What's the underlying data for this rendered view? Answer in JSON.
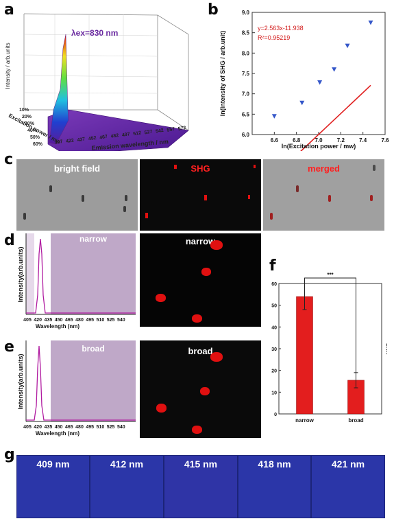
{
  "panel_labels": {
    "a": "a",
    "b": "b",
    "c": "c",
    "d": "d",
    "e": "e",
    "f": "f",
    "g": "g"
  },
  "panel_a": {
    "annotation": "λex=830 nm",
    "z_label": "Intensity / arb.units",
    "x_label": "Emission wavelength / nm",
    "y_label": "Excitation power / mw",
    "x_ticks": [
      "407",
      "422",
      "437",
      "452",
      "467",
      "482",
      "497",
      "512",
      "527",
      "542",
      "557",
      "572"
    ],
    "y_ticks": [
      "10%",
      "20%",
      "30%",
      "40%",
      "50%",
      "60%"
    ]
  },
  "panel_c": {
    "titles": [
      "bright field",
      "SHG",
      "merged"
    ]
  },
  "panel_d": {
    "band_label": "narrow",
    "image_label": "narrow",
    "ylabel": "Intensity(arb.units)",
    "xlabel": "Wavelength (nm)",
    "x_ticks": [
      "405",
      "420",
      "435",
      "450",
      "465",
      "480",
      "495",
      "510",
      "525",
      "540"
    ]
  },
  "panel_e": {
    "band_label": "broad",
    "image_label": "broad",
    "ylabel": "Intensity(arb.units)",
    "xlabel": "Wavelength (nm)",
    "x_ticks": [
      "405",
      "420",
      "435",
      "450",
      "465",
      "480",
      "495",
      "510",
      "525",
      "540"
    ]
  },
  "panel_g": {
    "tiles": [
      "409 nm",
      "412 nm",
      "415 nm",
      "418 nm",
      "421 nm"
    ]
  },
  "chart_data": [
    {
      "id": "b",
      "type": "scatter",
      "xlabel": "ln(Excitation power / mw)",
      "ylabel": "ln(Intensity of SHG / arb.unit)",
      "xlim": [
        6.4,
        7.6
      ],
      "ylim": [
        6.0,
        9.0
      ],
      "x_ticks": [
        6.6,
        6.8,
        7.0,
        7.2,
        7.4,
        7.6
      ],
      "y_ticks": [
        6.0,
        6.5,
        7.0,
        7.5,
        8.0,
        8.5,
        9.0
      ],
      "x": [
        6.6,
        6.85,
        7.01,
        7.14,
        7.26,
        7.47
      ],
      "y": [
        6.45,
        6.78,
        7.28,
        7.6,
        8.18,
        8.75
      ],
      "fit": {
        "slope": 2.563,
        "intercept": -11.938,
        "x_range": [
          6.6,
          7.47
        ]
      },
      "equation": "y=2.563x-11.938",
      "r2": "R²=0.95219",
      "marker_color": "#3557c9",
      "fit_color": "#e01f1f"
    },
    {
      "id": "f",
      "type": "bar",
      "categories": [
        "narrow",
        "broad"
      ],
      "values": [
        54,
        15.5
      ],
      "errors": [
        6,
        3.5
      ],
      "ylabel": "SNR",
      "ylim": [
        0,
        60
      ],
      "y_ticks": [
        0,
        10,
        20,
        30,
        40,
        50,
        60
      ],
      "significance": "***",
      "bar_color": "#e31e1e"
    }
  ]
}
